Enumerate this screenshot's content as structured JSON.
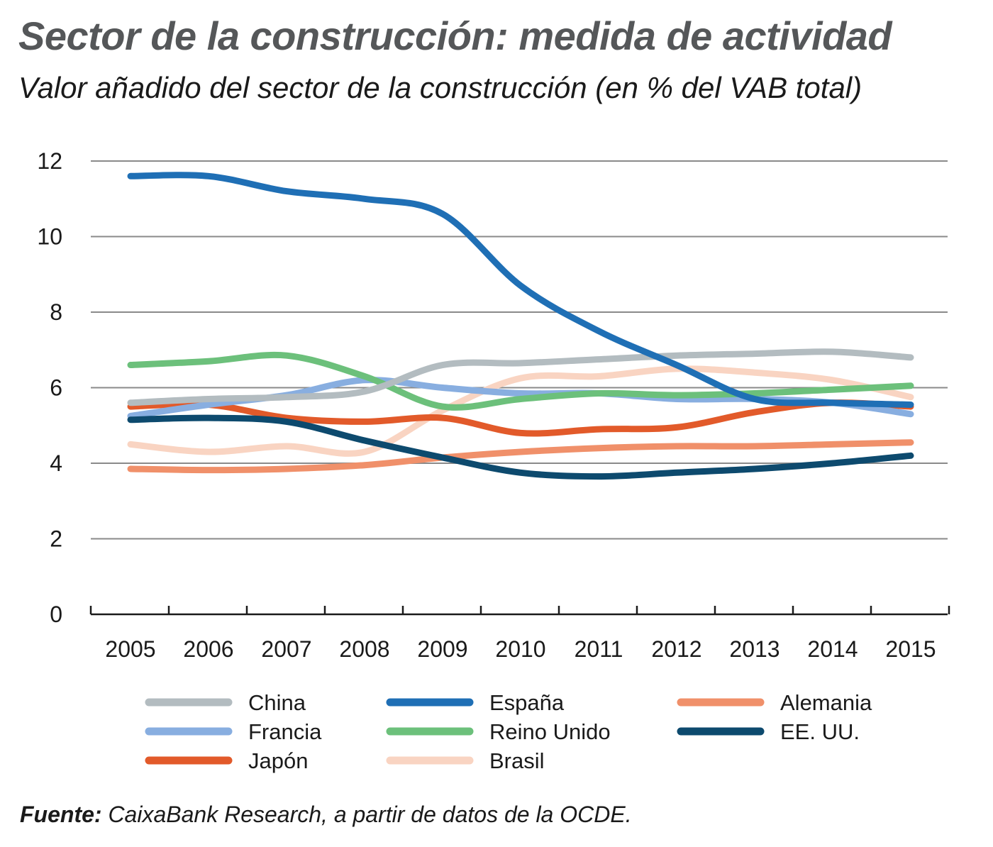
{
  "header": {
    "title": "Sector de la construcción: medida de actividad",
    "subtitle": "Valor añadido del sector de la construcción (en % del VAB total)"
  },
  "footer": {
    "source_label": "Fuente:",
    "source_text": " CaixaBank Research, a partir de datos de la OCDE."
  },
  "chart_data": {
    "type": "line",
    "title": "Sector de la construcción: medida de actividad",
    "subtitle": "Valor añadido del sector de la construcción (en % del VAB total)",
    "xlabel": "",
    "ylabel": "",
    "x": [
      "2005",
      "2006",
      "2007",
      "2008",
      "2009",
      "2010",
      "2011",
      "2012",
      "2013",
      "2014",
      "2015"
    ],
    "ylim": [
      0,
      12
    ],
    "yticks": [
      0,
      2,
      4,
      6,
      8,
      10,
      12
    ],
    "grid": "horizontal",
    "legend_position": "bottom",
    "series": [
      {
        "name": "China",
        "color": "#b3bcc0",
        "values": [
          5.6,
          5.7,
          5.75,
          5.9,
          6.6,
          6.65,
          6.75,
          6.85,
          6.9,
          6.95,
          6.8
        ]
      },
      {
        "name": "España",
        "color": "#1f6fb5",
        "values": [
          11.6,
          11.6,
          11.2,
          11.0,
          10.6,
          8.7,
          7.5,
          6.6,
          5.7,
          5.6,
          5.55
        ]
      },
      {
        "name": "Alemania",
        "color": "#f0906a",
        "values": [
          3.85,
          3.82,
          3.85,
          3.95,
          4.15,
          4.3,
          4.4,
          4.45,
          4.45,
          4.5,
          4.55
        ]
      },
      {
        "name": "Francia",
        "color": "#88aee0",
        "values": [
          5.25,
          5.55,
          5.8,
          6.2,
          6.0,
          5.85,
          5.85,
          5.7,
          5.7,
          5.6,
          5.3
        ]
      },
      {
        "name": "Reino Unido",
        "color": "#6cc07b",
        "values": [
          6.6,
          6.7,
          6.85,
          6.3,
          5.5,
          5.7,
          5.85,
          5.8,
          5.85,
          5.95,
          6.05
        ]
      },
      {
        "name": "EE. UU.",
        "color": "#0d4a6e",
        "values": [
          5.15,
          5.2,
          5.1,
          4.6,
          4.15,
          3.75,
          3.65,
          3.75,
          3.85,
          4.0,
          4.2
        ]
      },
      {
        "name": "Japón",
        "color": "#e25a2a",
        "values": [
          5.5,
          5.55,
          5.2,
          5.1,
          5.2,
          4.8,
          4.9,
          4.95,
          5.35,
          5.6,
          5.5
        ]
      },
      {
        "name": "Brasil",
        "color": "#f9d4c2",
        "values": [
          4.5,
          4.3,
          4.45,
          4.3,
          5.4,
          6.25,
          6.3,
          6.5,
          6.4,
          6.2,
          5.75
        ]
      }
    ]
  }
}
